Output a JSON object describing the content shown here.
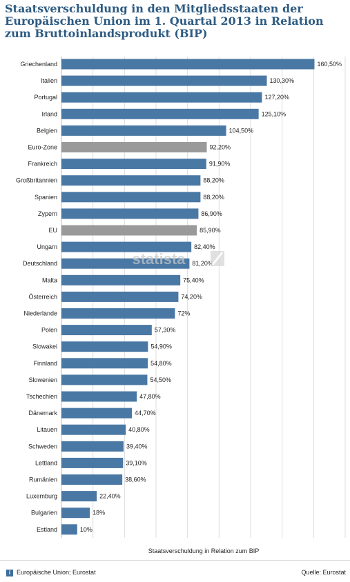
{
  "header": {
    "title": "Staatsverschuldung in den Mitgliedsstaaten der Europäischen Union im 1. Quartal 2013 in Relation zum Bruttoinlandsprodukt (BIP)"
  },
  "footer": {
    "source_left": "Europäische Union; Eurostat",
    "source_right": "Quelle: Eurostat",
    "info_glyph": "i"
  },
  "watermark": "statista",
  "colors": {
    "bar_default": "#4a78a4",
    "bar_highlight": "#9a9a9a",
    "gridline": "#dddddd"
  },
  "chart_data": {
    "type": "bar",
    "orientation": "horizontal",
    "xlabel": "Staatsverschuldung in Relation zum BIP",
    "ylabel": "",
    "xlim": [
      0,
      180
    ],
    "grid": true,
    "categories": [
      "Griechenland",
      "Italien",
      "Portugal",
      "Irland",
      "Belgien",
      "Euro-Zone",
      "Frankreich",
      "Großbritannien",
      "Spanien",
      "Zypern",
      "EU",
      "Ungarn",
      "Deutschland",
      "Malta",
      "Österreich",
      "Niederlande",
      "Polen",
      "Slowakei",
      "Finnland",
      "Slowenien",
      "Tschechien",
      "Dänemark",
      "Litauen",
      "Schweden",
      "Lettland",
      "Rumänien",
      "Luxemburg",
      "Bulgarien",
      "Estland"
    ],
    "values": [
      160.5,
      130.3,
      127.2,
      125.1,
      104.5,
      92.2,
      91.9,
      88.2,
      88.2,
      86.9,
      85.9,
      82.4,
      81.2,
      75.4,
      74.2,
      72,
      57.3,
      54.9,
      54.8,
      54.5,
      47.8,
      44.7,
      40.8,
      39.4,
      39.1,
      38.6,
      22.4,
      18,
      10
    ],
    "value_labels": [
      "160,50%",
      "130,30%",
      "127,20%",
      "125,10%",
      "104,50%",
      "92,20%",
      "91,90%",
      "88,20%",
      "88,20%",
      "86,90%",
      "85,90%",
      "82,40%",
      "81,20%",
      "75,40%",
      "74,20%",
      "72%",
      "57,30%",
      "54,90%",
      "54,80%",
      "54,50%",
      "47,80%",
      "44,70%",
      "40,80%",
      "39,40%",
      "39,10%",
      "38,60%",
      "22,40%",
      "18%",
      "10%"
    ],
    "highlight": [
      "Euro-Zone",
      "EU"
    ]
  }
}
